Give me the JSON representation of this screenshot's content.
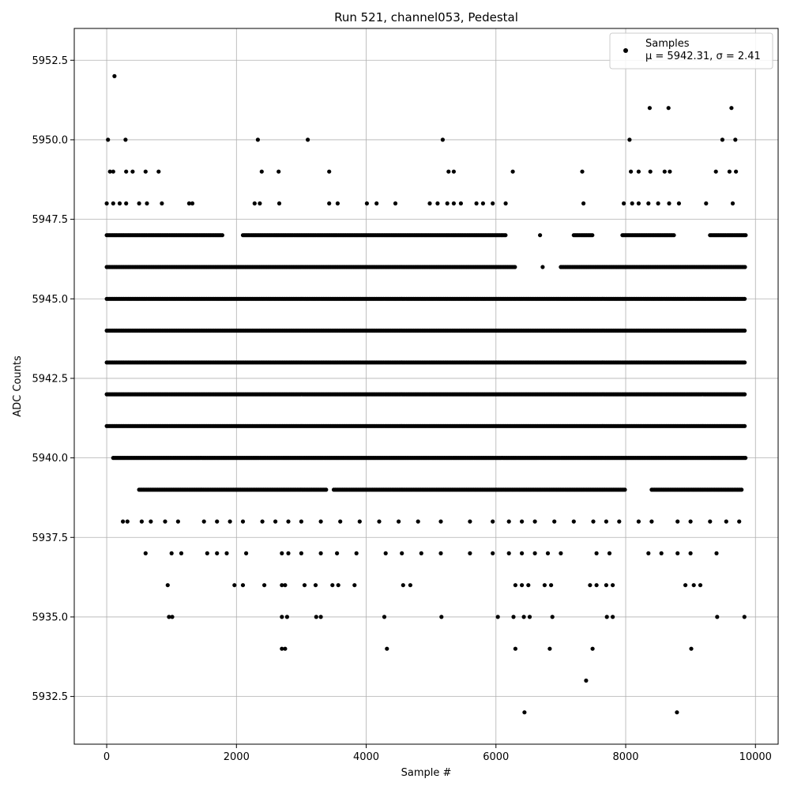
{
  "chart_data": {
    "type": "scatter",
    "title": "Run 521, channel053, Pedestal",
    "xlabel": "Sample #",
    "ylabel": "ADC Counts",
    "xlim": [
      -500,
      10350
    ],
    "ylim": [
      5931.0,
      5953.5
    ],
    "xticks": [
      0,
      2000,
      4000,
      6000,
      8000,
      10000
    ],
    "xtick_labels": [
      "0",
      "2000",
      "4000",
      "6000",
      "8000",
      "10000"
    ],
    "yticks": [
      5932.5,
      5935.0,
      5937.5,
      5940.0,
      5942.5,
      5945.0,
      5947.5,
      5950.0,
      5952.5
    ],
    "ytick_labels": [
      "5932.5",
      "5935.0",
      "5937.5",
      "5940.0",
      "5942.5",
      "5945.0",
      "5947.5",
      "5950.0",
      "5952.5"
    ],
    "grid": true,
    "legend": {
      "position": "top-right",
      "entries": [
        "Samples",
        "μ = 5942.31, σ = 2.41"
      ]
    },
    "marker_color": "#000000",
    "series": [
      {
        "name": "Samples",
        "bands": [
          {
            "y": 5941,
            "segments": [
              [
                0,
                9850
              ]
            ]
          },
          {
            "y": 5942,
            "segments": [
              [
                0,
                9850
              ]
            ]
          },
          {
            "y": 5943,
            "segments": [
              [
                0,
                9850
              ]
            ]
          },
          {
            "y": 5944,
            "segments": [
              [
                0,
                9850
              ]
            ]
          },
          {
            "y": 5945,
            "segments": [
              [
                0,
                9850
              ]
            ]
          },
          {
            "y": 5946,
            "segments": [
              [
                0,
                6300
              ],
              [
                7000,
                9850
              ]
            ]
          },
          {
            "y": 5940,
            "segments": [
              [
                100,
                9850
              ]
            ]
          },
          {
            "y": 5947,
            "segments": [
              [
                0,
                1800
              ],
              [
                2100,
                6150
              ],
              [
                7200,
                7500
              ],
              [
                7950,
                8750
              ],
              [
                9300,
                9850
              ]
            ]
          },
          {
            "y": 5939,
            "segments": [
              [
                500,
                3400
              ],
              [
                3500,
                8000
              ],
              [
                8400,
                9800
              ]
            ]
          }
        ],
        "points": [
          {
            "x": 120,
            "y": 5952
          },
          {
            "x": 20,
            "y": 5950
          },
          {
            "x": 290,
            "y": 5950
          },
          {
            "x": 2330,
            "y": 5950
          },
          {
            "x": 3100,
            "y": 5950
          },
          {
            "x": 5180,
            "y": 5950
          },
          {
            "x": 8060,
            "y": 5950
          },
          {
            "x": 9490,
            "y": 5950
          },
          {
            "x": 9690,
            "y": 5950
          },
          {
            "x": 8370,
            "y": 5951
          },
          {
            "x": 8660,
            "y": 5951
          },
          {
            "x": 9630,
            "y": 5951
          },
          {
            "x": 50,
            "y": 5949
          },
          {
            "x": 100,
            "y": 5949
          },
          {
            "x": 300,
            "y": 5949
          },
          {
            "x": 400,
            "y": 5949
          },
          {
            "x": 600,
            "y": 5949
          },
          {
            "x": 800,
            "y": 5949
          },
          {
            "x": 2390,
            "y": 5949
          },
          {
            "x": 2650,
            "y": 5949
          },
          {
            "x": 3430,
            "y": 5949
          },
          {
            "x": 5270,
            "y": 5949
          },
          {
            "x": 5350,
            "y": 5949
          },
          {
            "x": 6260,
            "y": 5949
          },
          {
            "x": 7330,
            "y": 5949
          },
          {
            "x": 8080,
            "y": 5949
          },
          {
            "x": 8200,
            "y": 5949
          },
          {
            "x": 8380,
            "y": 5949
          },
          {
            "x": 8600,
            "y": 5949
          },
          {
            "x": 8680,
            "y": 5949
          },
          {
            "x": 9390,
            "y": 5949
          },
          {
            "x": 9600,
            "y": 5949
          },
          {
            "x": 9700,
            "y": 5949
          },
          {
            "x": 0,
            "y": 5948
          },
          {
            "x": 100,
            "y": 5948
          },
          {
            "x": 200,
            "y": 5948
          },
          {
            "x": 300,
            "y": 5948
          },
          {
            "x": 500,
            "y": 5948
          },
          {
            "x": 620,
            "y": 5948
          },
          {
            "x": 850,
            "y": 5948
          },
          {
            "x": 1270,
            "y": 5948
          },
          {
            "x": 1320,
            "y": 5948
          },
          {
            "x": 2280,
            "y": 5948
          },
          {
            "x": 2360,
            "y": 5948
          },
          {
            "x": 2660,
            "y": 5948
          },
          {
            "x": 3430,
            "y": 5948
          },
          {
            "x": 3560,
            "y": 5948
          },
          {
            "x": 4010,
            "y": 5948
          },
          {
            "x": 4160,
            "y": 5948
          },
          {
            "x": 4450,
            "y": 5948
          },
          {
            "x": 4980,
            "y": 5948
          },
          {
            "x": 5100,
            "y": 5948
          },
          {
            "x": 5250,
            "y": 5948
          },
          {
            "x": 5350,
            "y": 5948
          },
          {
            "x": 5460,
            "y": 5948
          },
          {
            "x": 5700,
            "y": 5948
          },
          {
            "x": 5800,
            "y": 5948
          },
          {
            "x": 5950,
            "y": 5948
          },
          {
            "x": 6150,
            "y": 5948
          },
          {
            "x": 7350,
            "y": 5948
          },
          {
            "x": 7970,
            "y": 5948
          },
          {
            "x": 8100,
            "y": 5948
          },
          {
            "x": 8200,
            "y": 5948
          },
          {
            "x": 8350,
            "y": 5948
          },
          {
            "x": 8500,
            "y": 5948
          },
          {
            "x": 8670,
            "y": 5948
          },
          {
            "x": 8820,
            "y": 5948
          },
          {
            "x": 9240,
            "y": 5948
          },
          {
            "x": 9650,
            "y": 5948
          },
          {
            "x": 6680,
            "y": 5947
          },
          {
            "x": 6720,
            "y": 5946
          },
          {
            "x": 250,
            "y": 5938
          },
          {
            "x": 320,
            "y": 5938
          },
          {
            "x": 540,
            "y": 5938
          },
          {
            "x": 680,
            "y": 5938
          },
          {
            "x": 900,
            "y": 5938
          },
          {
            "x": 1100,
            "y": 5938
          },
          {
            "x": 1500,
            "y": 5938
          },
          {
            "x": 1700,
            "y": 5938
          },
          {
            "x": 1900,
            "y": 5938
          },
          {
            "x": 2100,
            "y": 5938
          },
          {
            "x": 2400,
            "y": 5938
          },
          {
            "x": 2600,
            "y": 5938
          },
          {
            "x": 2800,
            "y": 5938
          },
          {
            "x": 3000,
            "y": 5938
          },
          {
            "x": 3300,
            "y": 5938
          },
          {
            "x": 3600,
            "y": 5938
          },
          {
            "x": 3900,
            "y": 5938
          },
          {
            "x": 4200,
            "y": 5938
          },
          {
            "x": 4500,
            "y": 5938
          },
          {
            "x": 4800,
            "y": 5938
          },
          {
            "x": 5150,
            "y": 5938
          },
          {
            "x": 5600,
            "y": 5938
          },
          {
            "x": 5950,
            "y": 5938
          },
          {
            "x": 6200,
            "y": 5938
          },
          {
            "x": 6400,
            "y": 5938
          },
          {
            "x": 6600,
            "y": 5938
          },
          {
            "x": 6900,
            "y": 5938
          },
          {
            "x": 7200,
            "y": 5938
          },
          {
            "x": 7500,
            "y": 5938
          },
          {
            "x": 7700,
            "y": 5938
          },
          {
            "x": 7900,
            "y": 5938
          },
          {
            "x": 8200,
            "y": 5938
          },
          {
            "x": 8400,
            "y": 5938
          },
          {
            "x": 8800,
            "y": 5938
          },
          {
            "x": 9000,
            "y": 5938
          },
          {
            "x": 9300,
            "y": 5938
          },
          {
            "x": 9550,
            "y": 5938
          },
          {
            "x": 9750,
            "y": 5938
          },
          {
            "x": 600,
            "y": 5937
          },
          {
            "x": 1000,
            "y": 5937
          },
          {
            "x": 1150,
            "y": 5937
          },
          {
            "x": 1550,
            "y": 5937
          },
          {
            "x": 1700,
            "y": 5937
          },
          {
            "x": 1850,
            "y": 5937
          },
          {
            "x": 2150,
            "y": 5937
          },
          {
            "x": 2700,
            "y": 5937
          },
          {
            "x": 2800,
            "y": 5937
          },
          {
            "x": 3000,
            "y": 5937
          },
          {
            "x": 3300,
            "y": 5937
          },
          {
            "x": 3550,
            "y": 5937
          },
          {
            "x": 3850,
            "y": 5937
          },
          {
            "x": 4300,
            "y": 5937
          },
          {
            "x": 4550,
            "y": 5937
          },
          {
            "x": 4850,
            "y": 5937
          },
          {
            "x": 5150,
            "y": 5937
          },
          {
            "x": 5600,
            "y": 5937
          },
          {
            "x": 5950,
            "y": 5937
          },
          {
            "x": 6200,
            "y": 5937
          },
          {
            "x": 6400,
            "y": 5937
          },
          {
            "x": 6600,
            "y": 5937
          },
          {
            "x": 6800,
            "y": 5937
          },
          {
            "x": 7000,
            "y": 5937
          },
          {
            "x": 7550,
            "y": 5937
          },
          {
            "x": 7750,
            "y": 5937
          },
          {
            "x": 8350,
            "y": 5937
          },
          {
            "x": 8550,
            "y": 5937
          },
          {
            "x": 8800,
            "y": 5937
          },
          {
            "x": 9000,
            "y": 5937
          },
          {
            "x": 9400,
            "y": 5937
          },
          {
            "x": 940,
            "y": 5936
          },
          {
            "x": 1970,
            "y": 5936
          },
          {
            "x": 2100,
            "y": 5936
          },
          {
            "x": 2430,
            "y": 5936
          },
          {
            "x": 2700,
            "y": 5936
          },
          {
            "x": 2750,
            "y": 5936
          },
          {
            "x": 3050,
            "y": 5936
          },
          {
            "x": 3220,
            "y": 5936
          },
          {
            "x": 3480,
            "y": 5936
          },
          {
            "x": 3570,
            "y": 5936
          },
          {
            "x": 3820,
            "y": 5936
          },
          {
            "x": 4570,
            "y": 5936
          },
          {
            "x": 4680,
            "y": 5936
          },
          {
            "x": 6300,
            "y": 5936
          },
          {
            "x": 6400,
            "y": 5936
          },
          {
            "x": 6500,
            "y": 5936
          },
          {
            "x": 6750,
            "y": 5936
          },
          {
            "x": 6850,
            "y": 5936
          },
          {
            "x": 7450,
            "y": 5936
          },
          {
            "x": 7550,
            "y": 5936
          },
          {
            "x": 7700,
            "y": 5936
          },
          {
            "x": 7800,
            "y": 5936
          },
          {
            "x": 8920,
            "y": 5936
          },
          {
            "x": 9050,
            "y": 5936
          },
          {
            "x": 9150,
            "y": 5936
          },
          {
            "x": 960,
            "y": 5935
          },
          {
            "x": 1010,
            "y": 5935
          },
          {
            "x": 2700,
            "y": 5935
          },
          {
            "x": 2780,
            "y": 5935
          },
          {
            "x": 3230,
            "y": 5935
          },
          {
            "x": 3300,
            "y": 5935
          },
          {
            "x": 4280,
            "y": 5935
          },
          {
            "x": 5160,
            "y": 5935
          },
          {
            "x": 6030,
            "y": 5935
          },
          {
            "x": 6270,
            "y": 5935
          },
          {
            "x": 6430,
            "y": 5935
          },
          {
            "x": 6520,
            "y": 5935
          },
          {
            "x": 6870,
            "y": 5935
          },
          {
            "x": 7710,
            "y": 5935
          },
          {
            "x": 7800,
            "y": 5935
          },
          {
            "x": 9410,
            "y": 5935
          },
          {
            "x": 9830,
            "y": 5935
          },
          {
            "x": 2700,
            "y": 5934
          },
          {
            "x": 2750,
            "y": 5934
          },
          {
            "x": 4320,
            "y": 5934
          },
          {
            "x": 6300,
            "y": 5934
          },
          {
            "x": 6830,
            "y": 5934
          },
          {
            "x": 7490,
            "y": 5934
          },
          {
            "x": 9010,
            "y": 5934
          },
          {
            "x": 7390,
            "y": 5933
          },
          {
            "x": 6440,
            "y": 5932
          },
          {
            "x": 8790,
            "y": 5932
          }
        ]
      }
    ]
  }
}
